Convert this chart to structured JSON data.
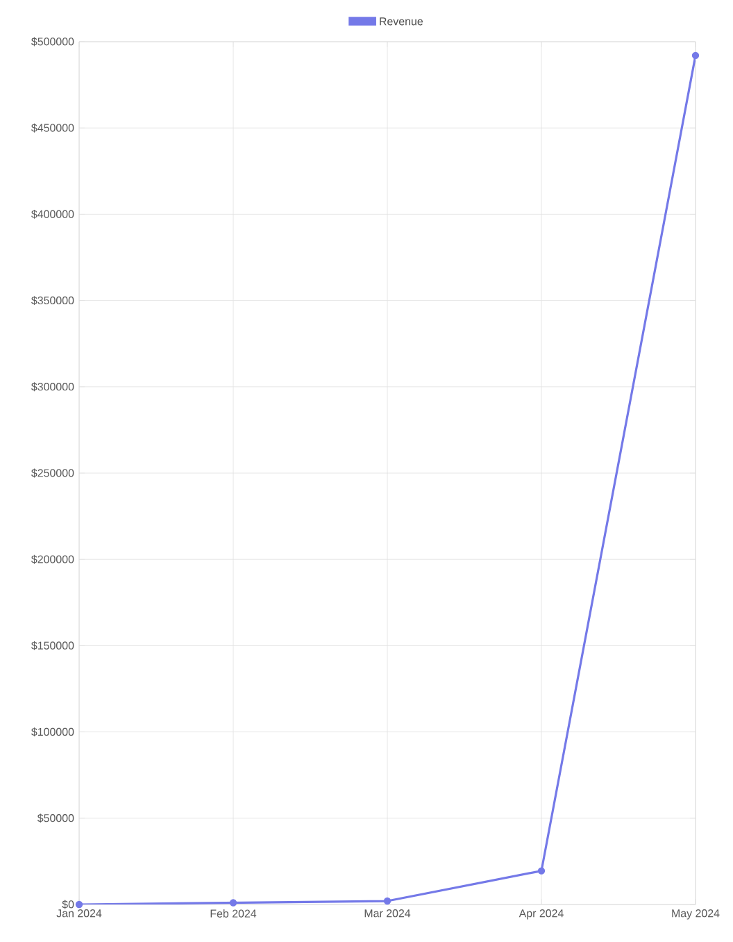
{
  "chart_data": {
    "type": "line",
    "categories": [
      "Jan 2024",
      "Feb 2024",
      "Mar 2024",
      "Apr 2024",
      "May 2024"
    ],
    "series": [
      {
        "name": "Revenue",
        "color": "#7479e8",
        "values": [
          0,
          1000,
          2000,
          19500,
          492000
        ]
      }
    ],
    "ylim": [
      0,
      500000
    ],
    "yticks": [
      {
        "value": 0,
        "label": "$0"
      },
      {
        "value": 50000,
        "label": "$50000"
      },
      {
        "value": 100000,
        "label": "$100000"
      },
      {
        "value": 150000,
        "label": "$150000"
      },
      {
        "value": 200000,
        "label": "$200000"
      },
      {
        "value": 250000,
        "label": "$250000"
      },
      {
        "value": 300000,
        "label": "$300000"
      },
      {
        "value": 350000,
        "label": "$350000"
      },
      {
        "value": 400000,
        "label": "$400000"
      },
      {
        "value": 450000,
        "label": "$450000"
      },
      {
        "value": 500000,
        "label": "$500000"
      }
    ],
    "grid": true,
    "legend": "top",
    "marker": "circle",
    "line_style": "solid"
  }
}
